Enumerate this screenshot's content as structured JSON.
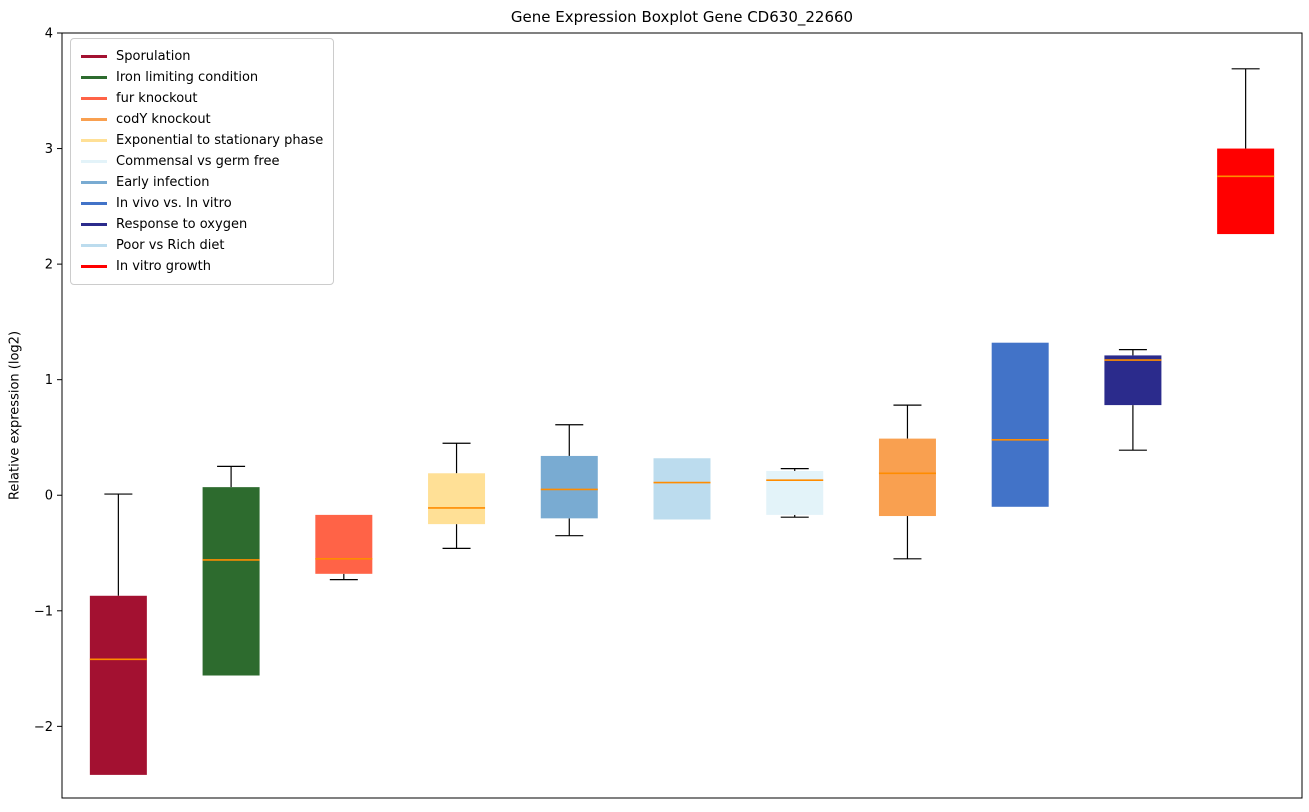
{
  "chart_data": {
    "type": "boxplot",
    "title": "Gene Expression Boxplot Gene CD630_22660",
    "xlabel": "",
    "ylabel": "Relative expression (log2)",
    "ylim": [
      -2.62,
      4.0
    ],
    "yticks": [
      -2,
      -1,
      0,
      1,
      2,
      3,
      4
    ],
    "grid": false,
    "legend_position": "upper-left",
    "median_color": "#ff8c00",
    "legend": [
      {
        "label": "Sporulation",
        "color": "#a31131"
      },
      {
        "label": "Iron limiting condition",
        "color": "#2d6b2e"
      },
      {
        "label": "fur knockout",
        "color": "#ff6347"
      },
      {
        "label": "codY knockout",
        "color": "#f9a050"
      },
      {
        "label": "Exponential to stationary phase",
        "color": "#ffe096"
      },
      {
        "label": "Commensal vs germ free",
        "color": "#e3f3f9"
      },
      {
        "label": "Early infection",
        "color": "#79abd2"
      },
      {
        "label": "In vivo vs. In vitro",
        "color": "#4273c8"
      },
      {
        "label": "Response to oxygen",
        "color": "#2b2b8c"
      },
      {
        "label": "Poor vs Rich diet",
        "color": "#bcdcee"
      },
      {
        "label": "In vitro growth",
        "color": "#ff0000"
      }
    ],
    "series": [
      {
        "name": "Sporulation",
        "color": "#a31131",
        "whisker_low": -2.42,
        "q1": -2.42,
        "median": -1.42,
        "q3": -0.87,
        "whisker_high": 0.01
      },
      {
        "name": "Iron limiting condition",
        "color": "#2d6b2e",
        "whisker_low": -1.56,
        "q1": -1.56,
        "median": -0.56,
        "q3": 0.07,
        "whisker_high": 0.25
      },
      {
        "name": "fur knockout",
        "color": "#ff6347",
        "whisker_low": -0.73,
        "q1": -0.68,
        "median": -0.55,
        "q3": -0.17,
        "whisker_high": -0.17
      },
      {
        "name": "Exponential to stationary phase",
        "color": "#ffe096",
        "whisker_low": -0.46,
        "q1": -0.25,
        "median": -0.11,
        "q3": 0.19,
        "whisker_high": 0.45
      },
      {
        "name": "Early infection",
        "color": "#79abd2",
        "whisker_low": -0.35,
        "q1": -0.2,
        "median": 0.05,
        "q3": 0.34,
        "whisker_high": 0.61
      },
      {
        "name": "Poor vs Rich diet",
        "color": "#bcdcee",
        "whisker_low": -0.21,
        "q1": -0.21,
        "median": 0.11,
        "q3": 0.32,
        "whisker_high": 0.32
      },
      {
        "name": "Commensal vs germ free",
        "color": "#e3f3f9",
        "whisker_low": -0.19,
        "q1": -0.17,
        "median": 0.13,
        "q3": 0.21,
        "whisker_high": 0.23
      },
      {
        "name": "codY knockout",
        "color": "#f9a050",
        "whisker_low": -0.55,
        "q1": -0.18,
        "median": 0.19,
        "q3": 0.49,
        "whisker_high": 0.78
      },
      {
        "name": "In vivo vs. In vitro",
        "color": "#4273c8",
        "whisker_low": -0.1,
        "q1": -0.1,
        "median": 0.48,
        "q3": 1.32,
        "whisker_high": 1.32
      },
      {
        "name": "Response to oxygen",
        "color": "#2b2b8c",
        "whisker_low": 0.39,
        "q1": 0.78,
        "median": 1.17,
        "q3": 1.21,
        "whisker_high": 1.26
      },
      {
        "name": "In vitro growth",
        "color": "#ff0000",
        "whisker_low": 2.26,
        "q1": 2.26,
        "median": 2.76,
        "q3": 3.0,
        "whisker_high": 3.69
      }
    ]
  }
}
